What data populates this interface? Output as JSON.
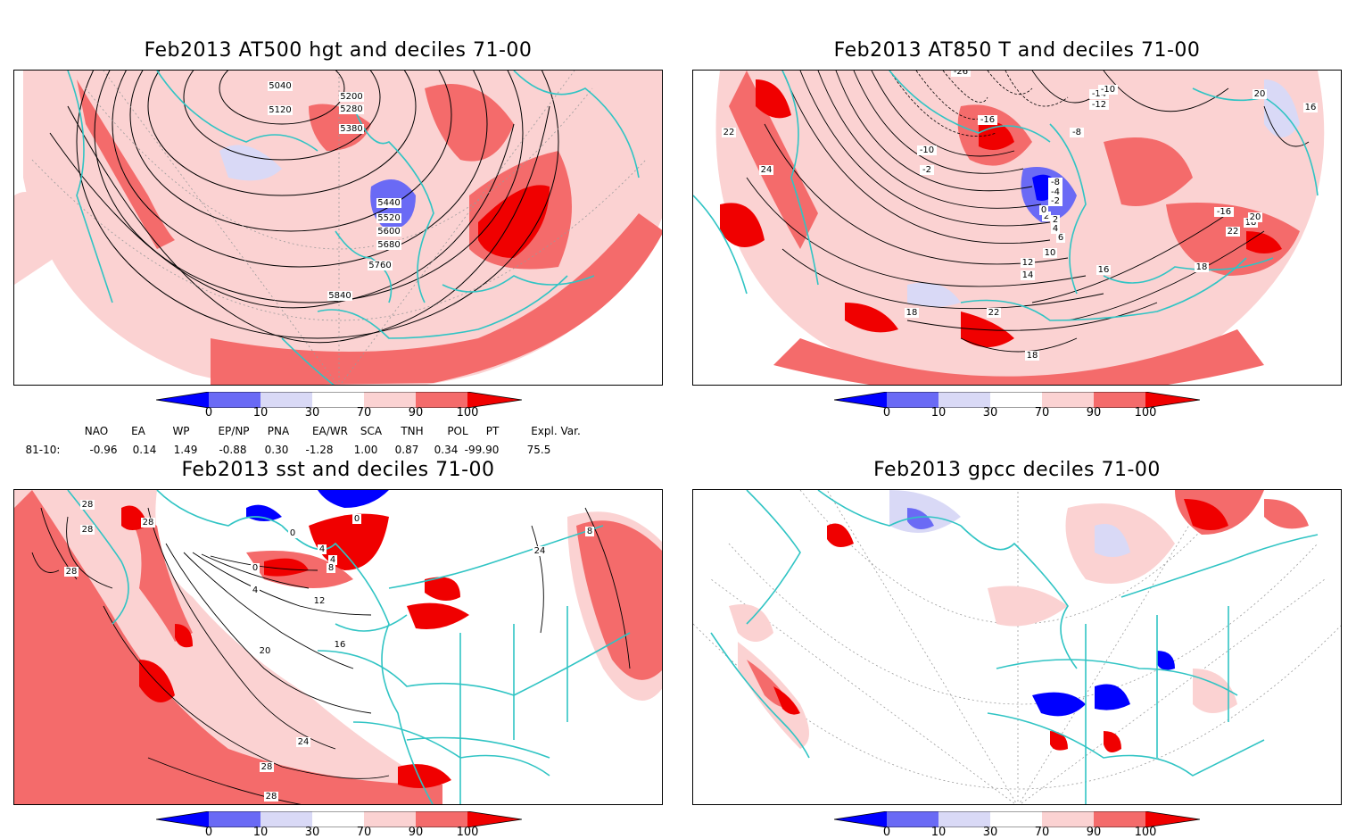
{
  "panels": [
    {
      "id": "p1",
      "title": "Feb2013 AT500 hgt and deciles 71-00",
      "labels": [
        "5040",
        "5120",
        "5200",
        "5280",
        "5380",
        "5440",
        "5520",
        "5600",
        "5680",
        "5760",
        "5840"
      ]
    },
    {
      "id": "p2",
      "title": "Feb2013 AT850 T and deciles 71-00",
      "labels": [
        "-26",
        "-14",
        "-12",
        "-10",
        "-16",
        "-8",
        "-10",
        "-2",
        "2",
        "-8",
        "-4",
        "-2",
        "0",
        "2",
        "4",
        "6",
        "10",
        "12",
        "14",
        "16",
        "18",
        "20",
        "22",
        "24",
        "18",
        "18",
        "16",
        "-16",
        "20",
        "22",
        "22",
        "18"
      ]
    },
    {
      "id": "p3",
      "title": "Feb2013 sst and deciles 71-00",
      "labels": [
        "28",
        "28",
        "28",
        "28",
        "0",
        "0",
        "4",
        "4",
        "8",
        "0",
        "4",
        "12",
        "16",
        "20",
        "24",
        "28",
        "28",
        "24",
        "8"
      ]
    },
    {
      "id": "p4",
      "title": "Feb2013 gpcc deciles 71-00",
      "labels": []
    }
  ],
  "colorbar": {
    "ticks": [
      "0",
      "10",
      "30",
      "70",
      "90",
      "100"
    ],
    "colors": {
      "deep_blue": "#0000ff",
      "mid_blue": "#6a6af5",
      "light_blue": "#d9d9f6",
      "light_red": "#fbd2d2",
      "mid_red": "#f46b6b",
      "deep_red": "#f00000"
    }
  },
  "indices": {
    "headers": [
      "NAO",
      "EA",
      "WP",
      "EP/NP",
      "PNA",
      "EA/WR",
      "SCA",
      "TNH",
      "POL",
      "PT",
      "Expl. Var."
    ],
    "row_label": "81-10:",
    "values": [
      "-0.96",
      "0.14",
      "1.49",
      "-0.88",
      "0.30",
      "-1.28",
      "1.00",
      "0.87",
      "0.34",
      "-99.90",
      "75.5"
    ]
  },
  "map_colors": {
    "coast": "#30c4c4",
    "grid": "#9a9a9a",
    "contour": "#000000"
  }
}
